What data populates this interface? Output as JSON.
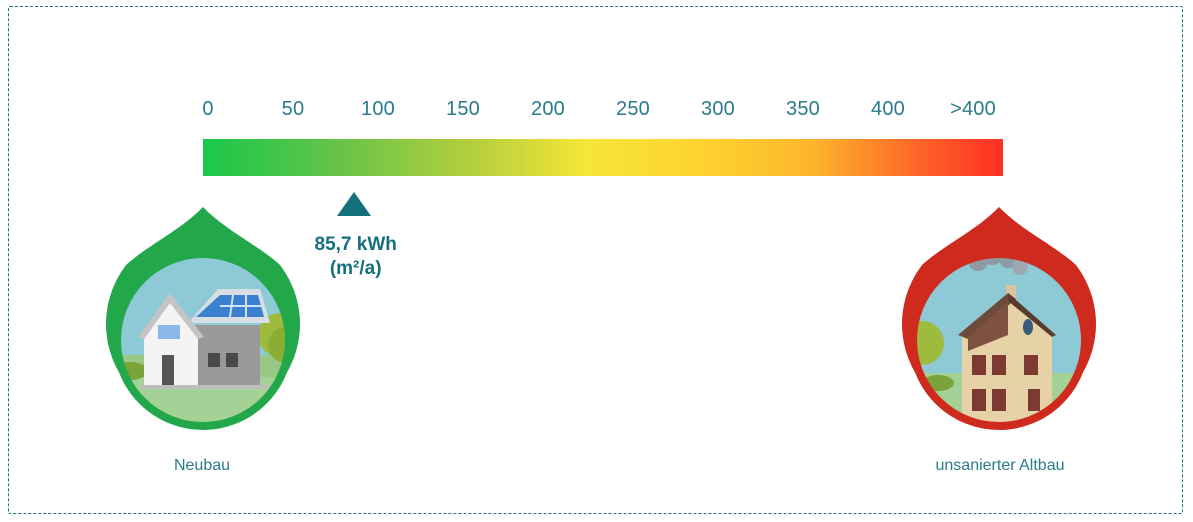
{
  "chart_data": {
    "type": "bar",
    "scale": {
      "ticks": [
        "0",
        "50",
        "100",
        "150",
        "200",
        "250",
        "300",
        "350",
        "400",
        ">400"
      ],
      "range": [
        0,
        450
      ]
    },
    "gradient_colors": [
      "#17c84a",
      "#b5cf3d",
      "#f6e637",
      "#fcb62c",
      "#ff2f25"
    ],
    "marker": {
      "value": 85.7,
      "label_line1": "85,7 kWh",
      "label_line2": "(m²/a)",
      "color": "#15707d"
    },
    "endpoints": [
      {
        "label": "Neubau",
        "color": "#22a84a",
        "icon": "new-house-icon"
      },
      {
        "label": "unsanierter Altbau",
        "color": "#cf2a1e",
        "icon": "old-house-icon"
      }
    ]
  }
}
